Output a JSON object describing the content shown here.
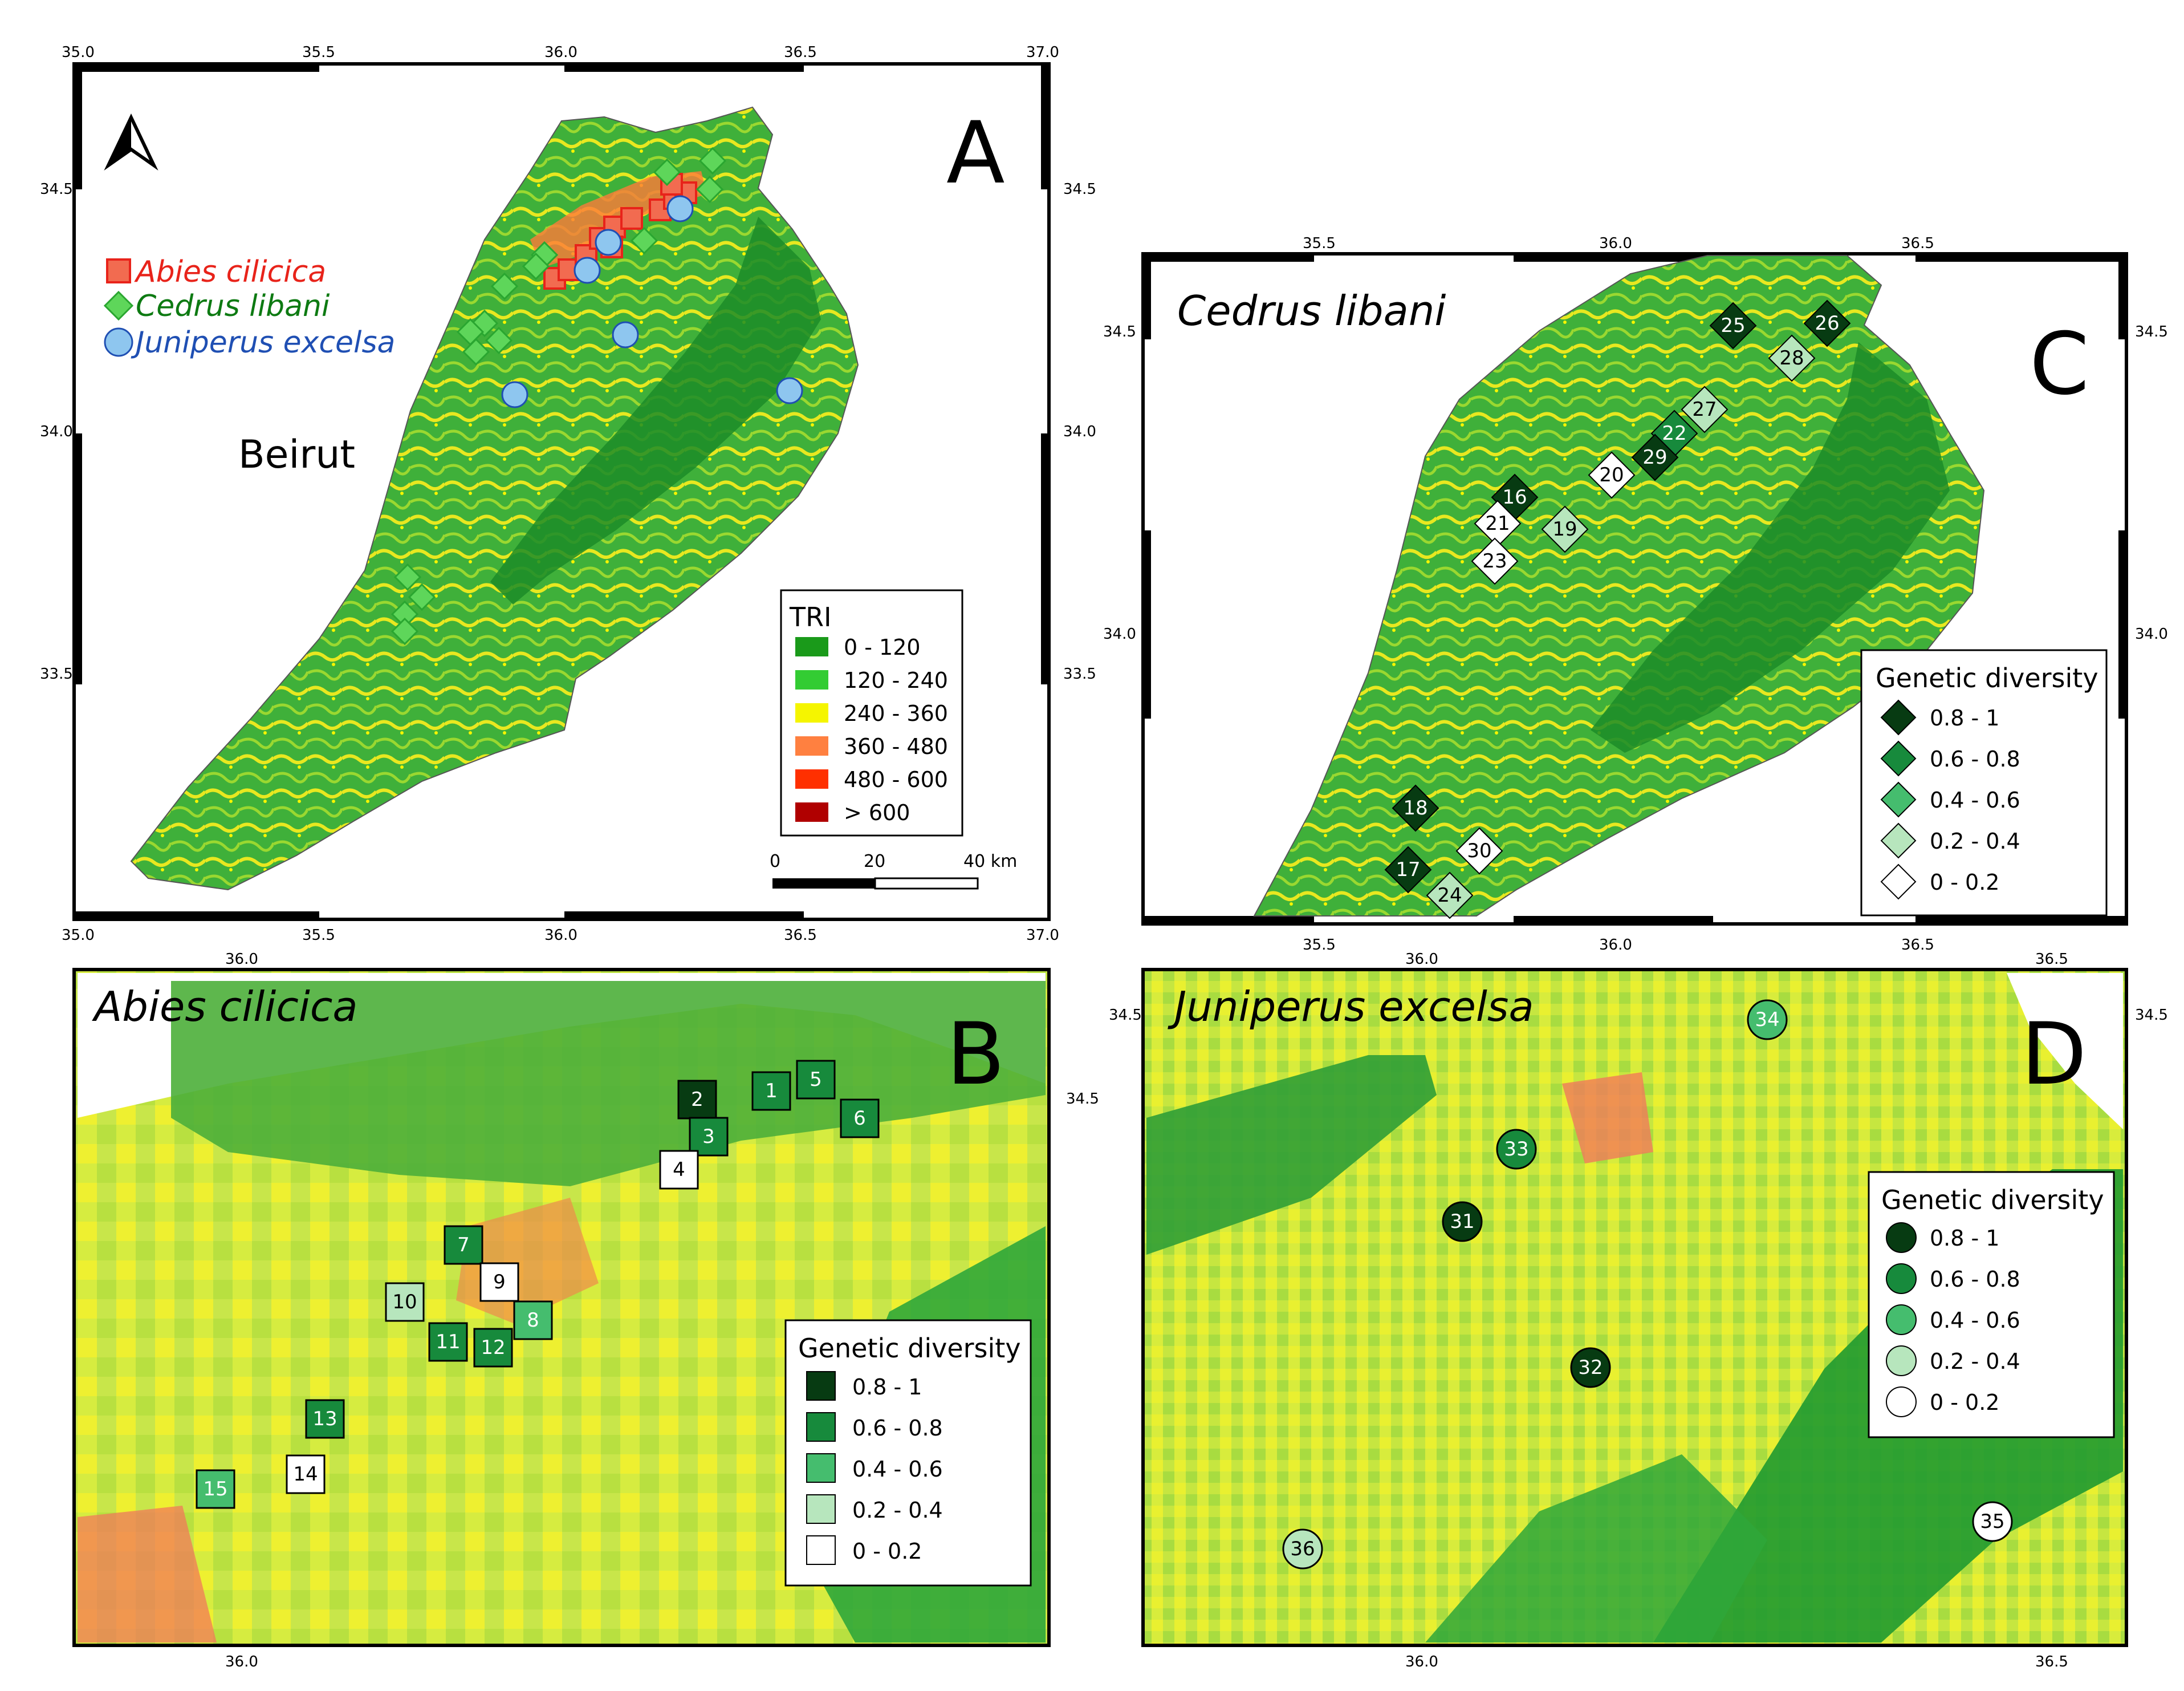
{
  "panelA": {
    "letter": "A",
    "x_ticks_top": [
      "35.0",
      "35.5",
      "36.0",
      "36.5",
      "37.0"
    ],
    "x_ticks_bottom": [
      "35.0",
      "35.5",
      "36.0",
      "36.5",
      "37.0"
    ],
    "y_ticks_left": [
      "34.5",
      "34.0",
      "33.5"
    ],
    "y_ticks_right": [
      "34.5",
      "34.0",
      "33.5"
    ],
    "city_label": "Beirut",
    "species_legend": [
      {
        "label": "Abies cilicica",
        "color": "#e8231a",
        "shape": "square"
      },
      {
        "label": "Cedrus libani",
        "color": "#0d7a12",
        "shape": "diamond"
      },
      {
        "label": "Juniperus excelsa",
        "color": "#1f4fb3",
        "shape": "circle"
      }
    ],
    "tri_legend": {
      "title": "TRI",
      "classes": [
        {
          "label": "0 - 120",
          "color": "#1a9a1a"
        },
        {
          "label": "120 - 240",
          "color": "#33cc33"
        },
        {
          "label": "240 - 360",
          "color": "#f5f500"
        },
        {
          "label": "360 - 480",
          "color": "#ff8040"
        },
        {
          "label": "480 - 600",
          "color": "#ff3000"
        },
        {
          "label": "> 600",
          "color": "#b00000"
        }
      ]
    },
    "scalebar": {
      "labels": [
        "0",
        "20",
        "40 km"
      ]
    },
    "north_arrow": "north-arrow-icon"
  },
  "panelB": {
    "letter": "B",
    "title": "Abies cilicica",
    "x_ticks_top": [
      "36.0"
    ],
    "x_ticks_bottom": [
      "36.0"
    ],
    "y_ticks_right": [
      "34.5"
    ],
    "legend": {
      "title": "Genetic diversity",
      "classes": [
        {
          "label": "0.8 - 1",
          "color": "#073b12"
        },
        {
          "label": "0.6 - 0.8",
          "color": "#178a3c"
        },
        {
          "label": "0.4 - 0.6",
          "color": "#45bd6e"
        },
        {
          "label": "0.2 - 0.4",
          "color": "#b7e6bd"
        },
        {
          "label": "0 - 0.2",
          "color": "#ffffff"
        }
      ]
    },
    "sites": [
      {
        "id": "1",
        "class": 1
      },
      {
        "id": "2",
        "class": 0
      },
      {
        "id": "3",
        "class": 1
      },
      {
        "id": "4",
        "class": 4
      },
      {
        "id": "5",
        "class": 1
      },
      {
        "id": "6",
        "class": 1
      },
      {
        "id": "7",
        "class": 1
      },
      {
        "id": "8",
        "class": 2
      },
      {
        "id": "9",
        "class": 4
      },
      {
        "id": "10",
        "class": 3
      },
      {
        "id": "11",
        "class": 1
      },
      {
        "id": "12",
        "class": 1
      },
      {
        "id": "13",
        "class": 1
      },
      {
        "id": "14",
        "class": 4
      },
      {
        "id": "15",
        "class": 2
      }
    ]
  },
  "panelC": {
    "letter": "C",
    "title": "Cedrus libani",
    "x_ticks_top": [
      "35.5",
      "36.0",
      "36.5"
    ],
    "x_ticks_bottom": [
      "35.5",
      "36.0",
      "36.5"
    ],
    "y_ticks_left": [
      "34.5",
      "34.0"
    ],
    "y_ticks_right": [
      "34.5",
      "34.0"
    ],
    "legend": {
      "title": "Genetic diversity",
      "classes": [
        {
          "label": "0.8 - 1",
          "color": "#073b12"
        },
        {
          "label": "0.6 - 0.8",
          "color": "#178a3c"
        },
        {
          "label": "0.4 - 0.6",
          "color": "#45bd6e"
        },
        {
          "label": "0.2 - 0.4",
          "color": "#b7e6bd"
        },
        {
          "label": "0 - 0.2",
          "color": "#ffffff"
        }
      ]
    },
    "sites": [
      {
        "id": "16",
        "class": 0
      },
      {
        "id": "17",
        "class": 0
      },
      {
        "id": "18",
        "class": 0
      },
      {
        "id": "19",
        "class": 3
      },
      {
        "id": "20",
        "class": 4
      },
      {
        "id": "21",
        "class": 4
      },
      {
        "id": "22",
        "class": 1
      },
      {
        "id": "23",
        "class": 4
      },
      {
        "id": "24",
        "class": 3
      },
      {
        "id": "25",
        "class": 0
      },
      {
        "id": "26",
        "class": 0
      },
      {
        "id": "27",
        "class": 3
      },
      {
        "id": "28",
        "class": 3
      },
      {
        "id": "29",
        "class": 0
      },
      {
        "id": "30",
        "class": 4
      }
    ]
  },
  "panelD": {
    "letter": "D",
    "title": "Juniperus excelsa",
    "x_ticks_bottom": [
      "36.0",
      "36.5"
    ],
    "x_ticks_top": [
      "36.0",
      "36.5"
    ],
    "y_ticks_left": [
      "34.5"
    ],
    "y_ticks_right": [
      "34.5"
    ],
    "legend": {
      "title": "Genetic diversity",
      "classes": [
        {
          "label": "0.8 - 1",
          "color": "#073b12"
        },
        {
          "label": "0.6 - 0.8",
          "color": "#178a3c"
        },
        {
          "label": "0.4 - 0.6",
          "color": "#45bd6e"
        },
        {
          "label": "0.2 - 0.4",
          "color": "#b7e6bd"
        },
        {
          "label": "0 - 0.2",
          "color": "#ffffff"
        }
      ]
    },
    "sites": [
      {
        "id": "31",
        "class": 0
      },
      {
        "id": "32",
        "class": 0
      },
      {
        "id": "33",
        "class": 1
      },
      {
        "id": "34",
        "class": 2
      },
      {
        "id": "35",
        "class": 4
      },
      {
        "id": "36",
        "class": 3
      }
    ]
  }
}
